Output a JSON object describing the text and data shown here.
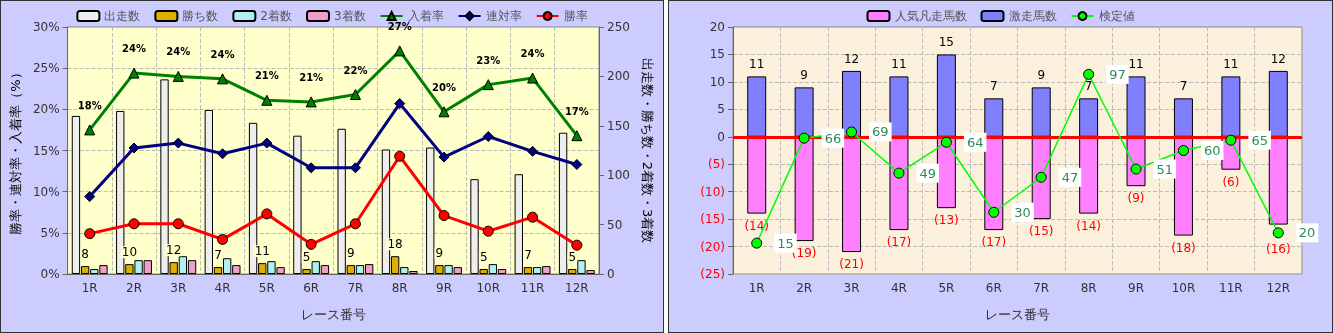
{
  "chart_data": [
    {
      "type": "bar",
      "xlabel": "レース番号",
      "ylabel": "勝率・連対率・入着率（%）",
      "y2label": "出走数・勝ち数・2着数・3着数",
      "categories": [
        "1R",
        "2R",
        "3R",
        "4R",
        "5R",
        "6R",
        "7R",
        "8R",
        "9R",
        "10R",
        "11R",
        "12R"
      ],
      "ylim": [
        0,
        30
      ],
      "yticks": [
        {
          "value": 0,
          "label": "0%"
        },
        {
          "value": 5,
          "label": "5%"
        },
        {
          "value": 10,
          "label": "10%"
        },
        {
          "value": 15,
          "label": "15%"
        },
        {
          "value": 20,
          "label": "20%"
        },
        {
          "value": 25,
          "label": "25%"
        },
        {
          "value": 30,
          "label": "30%"
        }
      ],
      "y2lim": [
        0,
        250
      ],
      "y2ticks": [
        0,
        50,
        100,
        150,
        200,
        250
      ],
      "grid": true,
      "legend": "top",
      "series": [
        {
          "name": "出走数",
          "axis": "y2",
          "color": "#eeeeee",
          "values": [
            160,
            165,
            197,
            166,
            153,
            140,
            147,
            126,
            128,
            96,
            101,
            143
          ]
        },
        {
          "name": "勝ち数",
          "axis": "y2",
          "color": "#e0b000",
          "values": [
            8,
            10,
            12,
            7,
            11,
            5,
            9,
            18,
            9,
            5,
            7,
            5
          ],
          "data_labels": true
        },
        {
          "name": "2着数",
          "axis": "y2",
          "color": "#b0f0f0",
          "values": [
            5,
            14,
            18,
            16,
            13,
            13,
            9,
            7,
            9,
            10,
            7,
            14
          ]
        },
        {
          "name": "3着数",
          "axis": "y2",
          "color": "#f0a0c8",
          "values": [
            9,
            14,
            14,
            9,
            7,
            9,
            10,
            3,
            7,
            5,
            8,
            4
          ]
        },
        {
          "name": "入着率",
          "type": "line",
          "color": "#008000",
          "marker": "triangle",
          "values": [
            17.5,
            24.4,
            24.0,
            23.7,
            21.1,
            20.9,
            21.8,
            27.1,
            19.7,
            23.0,
            23.8,
            16.8
          ],
          "value_labels": [
            "18%",
            "24%",
            "24%",
            "24%",
            "21%",
            "21%",
            "22%",
            "27%",
            "20%",
            "23%",
            "24%",
            "17%"
          ]
        },
        {
          "name": "連対率",
          "type": "line",
          "color": "#000080",
          "marker": "diamond",
          "values": [
            9.4,
            15.3,
            15.9,
            14.6,
            15.9,
            12.9,
            12.9,
            20.7,
            14.2,
            16.7,
            14.9,
            13.3
          ]
        },
        {
          "name": "勝率",
          "type": "line",
          "color": "#ff0000",
          "marker": "circle",
          "values": [
            4.9,
            6.1,
            6.1,
            4.2,
            7.3,
            3.6,
            6.1,
            14.3,
            7.1,
            5.2,
            6.9,
            3.5
          ]
        }
      ]
    },
    {
      "type": "bar",
      "xlabel": "レース番号",
      "stacked": true,
      "categories": [
        "1R",
        "2R",
        "3R",
        "4R",
        "5R",
        "6R",
        "7R",
        "8R",
        "9R",
        "10R",
        "11R",
        "12R"
      ],
      "ylim": [
        -25,
        20
      ],
      "y2lim": [
        0,
        120
      ],
      "yticks": [
        {
          "value": -25,
          "label": "(25)"
        },
        {
          "value": -20,
          "label": "(20)"
        },
        {
          "value": -15,
          "label": "(15)"
        },
        {
          "value": -10,
          "label": "(10)"
        },
        {
          "value": -5,
          "label": "(5)"
        },
        0,
        5,
        10,
        15,
        20
      ],
      "grid": true,
      "legend": "top",
      "ref_lines": [
        {
          "axis": "y",
          "value": 0,
          "color": "#ff0000"
        }
      ],
      "series": [
        {
          "name": "人気凡走馬数",
          "color": "#ff80ff",
          "values": [
            -14,
            -19,
            -21,
            -17,
            -13,
            -17,
            -15,
            -14,
            -9,
            -18,
            -6,
            -16
          ],
          "value_labels": [
            "(14)",
            "(19)",
            "(21)",
            "(17)",
            "(13)",
            "(17)",
            "(15)",
            "(14)",
            "(9)",
            "(18)",
            "(6)",
            "(16)"
          ]
        },
        {
          "name": "激走馬数",
          "color": "#8080ff",
          "values": [
            11,
            9,
            12,
            11,
            15,
            7,
            9,
            7,
            11,
            7,
            11,
            12
          ],
          "data_labels": true
        },
        {
          "name": "検定値",
          "type": "line",
          "axis": "y2",
          "color": "#00ff00",
          "marker": "circle",
          "values": [
            15,
            66,
            69,
            49,
            64,
            30,
            47,
            97,
            51,
            60,
            65,
            20
          ],
          "data_labels": true
        }
      ]
    }
  ]
}
